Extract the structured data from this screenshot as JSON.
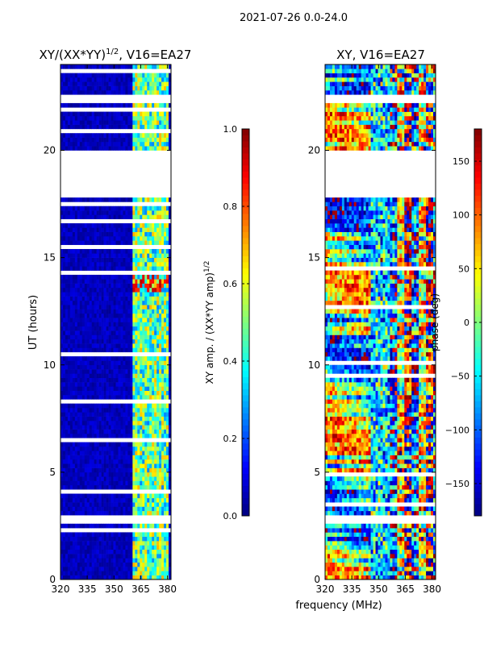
{
  "suptitle": "2021-07-26 0.0-24.0",
  "colors": {
    "background": "#ffffff",
    "gap": "#ffffff",
    "axis": "#000000",
    "jet": [
      "#00007f",
      "#0000ff",
      "#007fff",
      "#00ffff",
      "#7fff7f",
      "#ffff00",
      "#ff7f00",
      "#ff0000",
      "#7f0000"
    ]
  },
  "chart_data": [
    {
      "type": "heatmap",
      "title_main": "XY/(XX*YY)",
      "title_sup": "1/2",
      "title_tail": ", V16=EA27",
      "xlabel": "",
      "ylabel": "UT (hours)",
      "xlim": [
        320,
        382
      ],
      "ylim": [
        0,
        24
      ],
      "xticks": [
        320,
        335,
        350,
        365,
        380
      ],
      "yticks": [
        0,
        5,
        10,
        15,
        20
      ],
      "data_gaps_hours": [
        [
          2.6,
          3.0
        ],
        [
          19.9,
          20.0
        ],
        [
          17.75,
          20.0
        ],
        [
          22.2,
          22.6
        ]
      ],
      "colorbar": {
        "label_main": "XY amp. / (XX*YY amp)",
        "label_sup": "1/2",
        "range": [
          0.0,
          1.0
        ],
        "ticks": [
          0.0,
          0.2,
          0.4,
          0.6,
          0.8,
          1.0
        ],
        "tick_labels": [
          "0.0",
          "0.2",
          "0.4",
          "0.6",
          "0.8",
          "1.0"
        ]
      }
    },
    {
      "type": "heatmap",
      "title_main": "XY, V16=EA27",
      "xlabel": "frequency (MHz)",
      "ylabel": "",
      "xlim": [
        320,
        382
      ],
      "ylim": [
        0,
        24
      ],
      "xticks": [
        320,
        335,
        350,
        365,
        380
      ],
      "yticks": [
        0,
        5,
        10,
        15,
        20
      ],
      "data_gaps_hours": [
        [
          2.6,
          3.0
        ],
        [
          17.75,
          20.0
        ],
        [
          22.2,
          22.6
        ]
      ],
      "colorbar": {
        "label_main": "phase (deg)",
        "range": [
          -180,
          180
        ],
        "ticks": [
          -150,
          -100,
          -50,
          0,
          50,
          100,
          150
        ],
        "tick_labels": [
          "−150",
          "−100",
          "−50",
          "0",
          "50",
          "100",
          "150"
        ]
      }
    }
  ]
}
